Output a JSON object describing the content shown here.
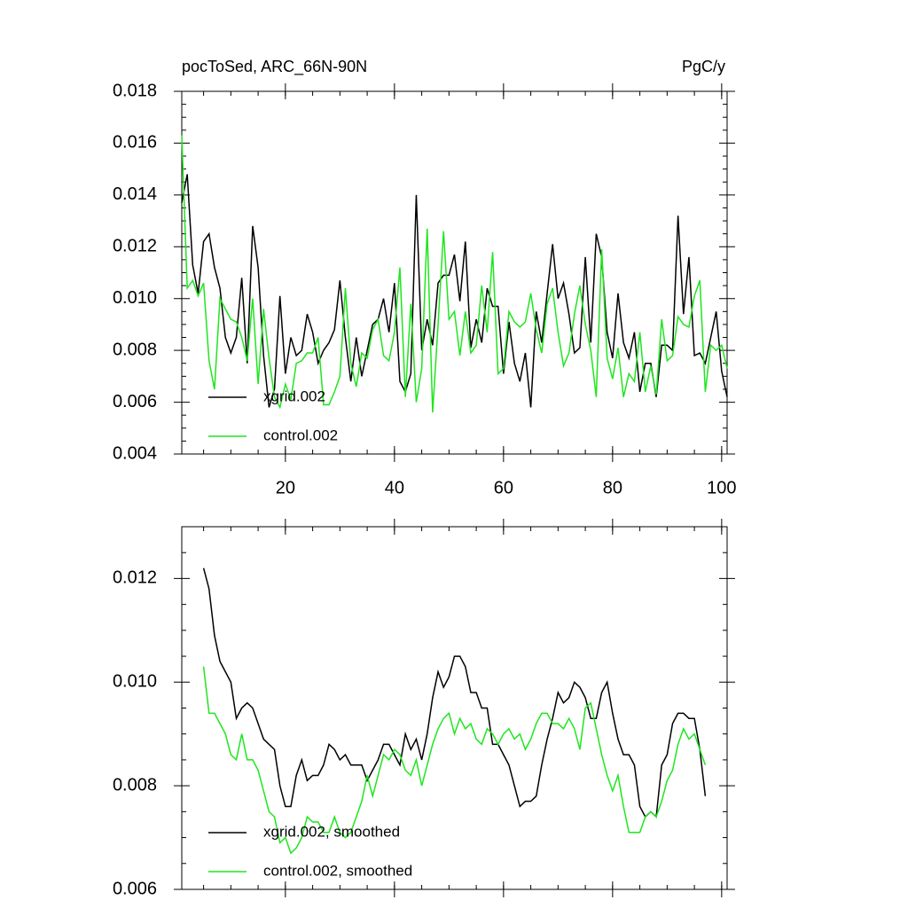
{
  "chart_data": [
    {
      "type": "line",
      "title": "pocToSed, ARC_66N-90N",
      "units": "PgC/y",
      "x": [
        1,
        2,
        3,
        4,
        5,
        6,
        7,
        8,
        9,
        10,
        11,
        12,
        13,
        14,
        15,
        16,
        17,
        18,
        19,
        20,
        21,
        22,
        23,
        24,
        25,
        26,
        27,
        28,
        29,
        30,
        31,
        32,
        33,
        34,
        35,
        36,
        37,
        38,
        39,
        40,
        41,
        42,
        43,
        44,
        45,
        46,
        47,
        48,
        49,
        50,
        51,
        52,
        53,
        54,
        55,
        56,
        57,
        58,
        59,
        60,
        61,
        62,
        63,
        64,
        65,
        66,
        67,
        68,
        69,
        70,
        71,
        72,
        73,
        74,
        75,
        76,
        77,
        78,
        79,
        80,
        81,
        82,
        83,
        84,
        85,
        86,
        87,
        88,
        89,
        90,
        91,
        92,
        93,
        94,
        95,
        96,
        97,
        98,
        99,
        100,
        101
      ],
      "series": [
        {
          "name": "xgrid.002",
          "color": "#000000",
          "values": [
            0.0137,
            0.0148,
            0.0113,
            0.0102,
            0.0122,
            0.0125,
            0.0112,
            0.0104,
            0.0085,
            0.0079,
            0.0085,
            0.0108,
            0.0075,
            0.0128,
            0.0112,
            0.0078,
            0.0058,
            0.0065,
            0.0101,
            0.0071,
            0.0085,
            0.0078,
            0.008,
            0.0094,
            0.0087,
            0.0075,
            0.008,
            0.0083,
            0.0088,
            0.0107,
            0.0085,
            0.0068,
            0.0085,
            0.007,
            0.008,
            0.009,
            0.0092,
            0.01,
            0.0087,
            0.0106,
            0.0068,
            0.0064,
            0.0071,
            0.014,
            0.008,
            0.0092,
            0.0082,
            0.0106,
            0.0109,
            0.0109,
            0.0117,
            0.0099,
            0.0122,
            0.0081,
            0.0092,
            0.0083,
            0.0104,
            0.0097,
            0.0097,
            0.0071,
            0.0091,
            0.0075,
            0.0068,
            0.0079,
            0.0058,
            0.0095,
            0.0083,
            0.0102,
            0.0121,
            0.01,
            0.0106,
            0.0094,
            0.0079,
            0.0081,
            0.0116,
            0.0083,
            0.0125,
            0.0116,
            0.0087,
            0.0077,
            0.0102,
            0.0083,
            0.0077,
            0.0087,
            0.0064,
            0.0075,
            0.0075,
            0.0062,
            0.0082,
            0.0082,
            0.008,
            0.0132,
            0.0094,
            0.0116,
            0.0078,
            0.0079,
            0.0075,
            0.0085,
            0.0095,
            0.0072,
            0.0062
          ]
        },
        {
          "name": "control.002",
          "color": "#1ee61e",
          "values": [
            0.0163,
            0.0104,
            0.0107,
            0.0101,
            0.0106,
            0.0076,
            0.0065,
            0.01,
            0.0096,
            0.0092,
            0.0091,
            0.0085,
            0.0076,
            0.01,
            0.0067,
            0.0096,
            0.0077,
            0.0062,
            0.0058,
            0.0067,
            0.0061,
            0.0075,
            0.0076,
            0.0079,
            0.0079,
            0.0085,
            0.0059,
            0.0059,
            0.0064,
            0.007,
            0.0104,
            0.0075,
            0.0066,
            0.0079,
            0.0077,
            0.0088,
            0.0092,
            0.0078,
            0.0076,
            0.0087,
            0.0112,
            0.0062,
            0.0098,
            0.006,
            0.0073,
            0.0127,
            0.0056,
            0.009,
            0.0126,
            0.0092,
            0.0095,
            0.0078,
            0.0095,
            0.0079,
            0.0082,
            0.0105,
            0.0087,
            0.0118,
            0.0071,
            0.0073,
            0.0095,
            0.0091,
            0.0089,
            0.0091,
            0.0102,
            0.0088,
            0.0079,
            0.0098,
            0.0104,
            0.0087,
            0.0074,
            0.0079,
            0.0094,
            0.0105,
            0.009,
            0.008,
            0.0062,
            0.0119,
            0.0077,
            0.0069,
            0.0081,
            0.0062,
            0.0071,
            0.0068,
            0.0087,
            0.0064,
            0.0074,
            0.0063,
            0.0092,
            0.0076,
            0.0078,
            0.0093,
            0.009,
            0.0089,
            0.0101,
            0.0107,
            0.0064,
            0.0082,
            0.008,
            0.0082,
            0.0073
          ]
        }
      ],
      "xlim": [
        1,
        101
      ],
      "xticks": [
        20,
        40,
        60,
        80,
        100
      ],
      "ylim": [
        0.004,
        0.018
      ],
      "yticks": [
        0.004,
        0.006,
        0.008,
        {
          "value": 0.01,
          "label": "0.010"
        },
        0.012,
        0.014,
        0.016,
        0.018
      ],
      "legend": "lower left"
    },
    {
      "type": "line",
      "x": [
        5,
        6,
        7,
        8,
        9,
        10,
        11,
        12,
        13,
        14,
        15,
        16,
        17,
        18,
        19,
        20,
        21,
        22,
        23,
        24,
        25,
        26,
        27,
        28,
        29,
        30,
        31,
        32,
        33,
        34,
        35,
        36,
        37,
        38,
        39,
        40,
        41,
        42,
        43,
        44,
        45,
        46,
        47,
        48,
        49,
        50,
        51,
        52,
        53,
        54,
        55,
        56,
        57,
        58,
        59,
        60,
        61,
        62,
        63,
        64,
        65,
        66,
        67,
        68,
        69,
        70,
        71,
        72,
        73,
        74,
        75,
        76,
        77,
        78,
        79,
        80,
        81,
        82,
        83,
        84,
        85,
        86,
        87,
        88,
        89,
        90,
        91,
        92,
        93,
        94,
        95,
        96,
        97
      ],
      "series": [
        {
          "name": "xgrid.002, smoothed",
          "color": "#000000",
          "values": [
            0.0122,
            0.0118,
            0.0109,
            0.0104,
            0.0102,
            0.01,
            0.0093,
            0.0095,
            0.0096,
            0.0095,
            0.0092,
            0.0089,
            0.0088,
            0.0087,
            0.008,
            0.0076,
            0.0076,
            0.0082,
            0.0085,
            0.0081,
            0.0082,
            0.0082,
            0.0084,
            0.0088,
            0.0087,
            0.0085,
            0.0086,
            0.0084,
            0.0084,
            0.0084,
            0.0081,
            0.0083,
            0.0085,
            0.0088,
            0.0088,
            0.0086,
            0.0084,
            0.009,
            0.0087,
            0.0089,
            0.0085,
            0.009,
            0.0097,
            0.0102,
            0.0099,
            0.0101,
            0.0105,
            0.0105,
            0.0103,
            0.0098,
            0.0098,
            0.0095,
            0.0095,
            0.0088,
            0.0088,
            0.0086,
            0.0084,
            0.008,
            0.0076,
            0.0077,
            0.0077,
            0.0078,
            0.0084,
            0.0089,
            0.0093,
            0.0098,
            0.0096,
            0.0097,
            0.01,
            0.0099,
            0.0097,
            0.0093,
            0.0093,
            0.0098,
            0.01,
            0.0094,
            0.0089,
            0.0086,
            0.0086,
            0.0084,
            0.0076,
            0.0074,
            0.0075,
            0.0074,
            0.0084,
            0.0086,
            0.0092,
            0.0094,
            0.0094,
            0.0093,
            0.0093,
            0.0087,
            0.0078
          ]
        },
        {
          "name": "control.002, smoothed",
          "color": "#1ee61e",
          "values": [
            0.0103,
            0.0094,
            0.0094,
            0.0092,
            0.009,
            0.0086,
            0.0085,
            0.009,
            0.0085,
            0.0085,
            0.0083,
            0.0079,
            0.0075,
            0.0074,
            0.0069,
            0.007,
            0.0067,
            0.0068,
            0.007,
            0.0074,
            0.0073,
            0.0073,
            0.0071,
            0.0071,
            0.0074,
            0.0071,
            0.007,
            0.0071,
            0.0074,
            0.0077,
            0.0082,
            0.0078,
            0.0082,
            0.0086,
            0.0085,
            0.0087,
            0.0086,
            0.0083,
            0.0082,
            0.0085,
            0.008,
            0.0084,
            0.0088,
            0.0091,
            0.0093,
            0.0094,
            0.009,
            0.0093,
            0.0091,
            0.0092,
            0.0089,
            0.0088,
            0.0091,
            0.009,
            0.0088,
            0.009,
            0.0091,
            0.0089,
            0.009,
            0.0087,
            0.0089,
            0.0092,
            0.0094,
            0.0094,
            0.0092,
            0.0092,
            0.0091,
            0.0093,
            0.0091,
            0.0087,
            0.0095,
            0.0096,
            0.0091,
            0.0086,
            0.0082,
            0.0079,
            0.0082,
            0.0076,
            0.0071,
            0.0071,
            0.0071,
            0.0074,
            0.0075,
            0.0074,
            0.0077,
            0.0081,
            0.0083,
            0.0088,
            0.0091,
            0.0089,
            0.009,
            0.0087,
            0.0084
          ]
        }
      ],
      "xlim": [
        1,
        101
      ],
      "xticks": [
        20,
        40,
        60,
        80,
        100
      ],
      "ylim": [
        0.006,
        0.013
      ],
      "yticks": [
        0.006,
        0.008,
        {
          "value": 0.01,
          "label": "0.010"
        },
        0.012
      ],
      "legend": "lower left"
    }
  ]
}
